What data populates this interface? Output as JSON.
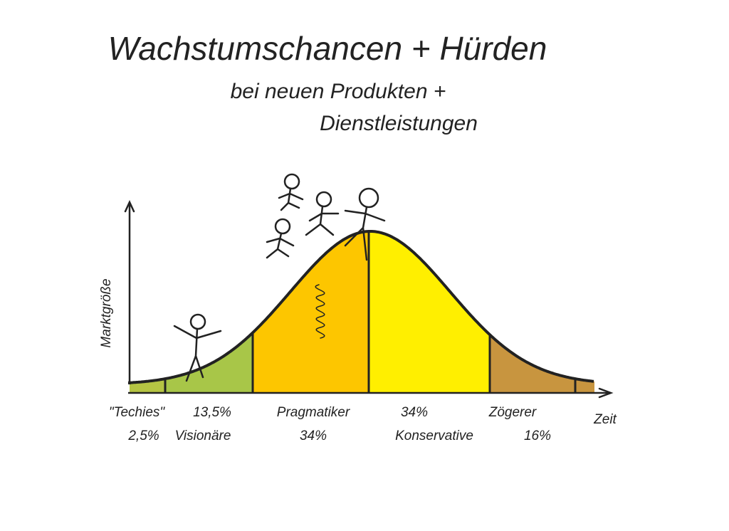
{
  "header": {
    "title": "Wachstumschancen + Hürden",
    "subtitle": [
      "bei neuen Produkten +",
      "Dienstleistungen"
    ]
  },
  "axes": {
    "y": "Marktgröße",
    "x": "Zeit"
  },
  "segments": [
    {
      "name": "\"Techies\"",
      "share": "2,5%"
    },
    {
      "name": "Visionäre",
      "share": "13,5%"
    },
    {
      "name": "Pragmatiker",
      "share": "34%"
    },
    {
      "name": "Konservative",
      "share": "34%"
    },
    {
      "name": "Zögerer",
      "share": "16%"
    }
  ]
}
